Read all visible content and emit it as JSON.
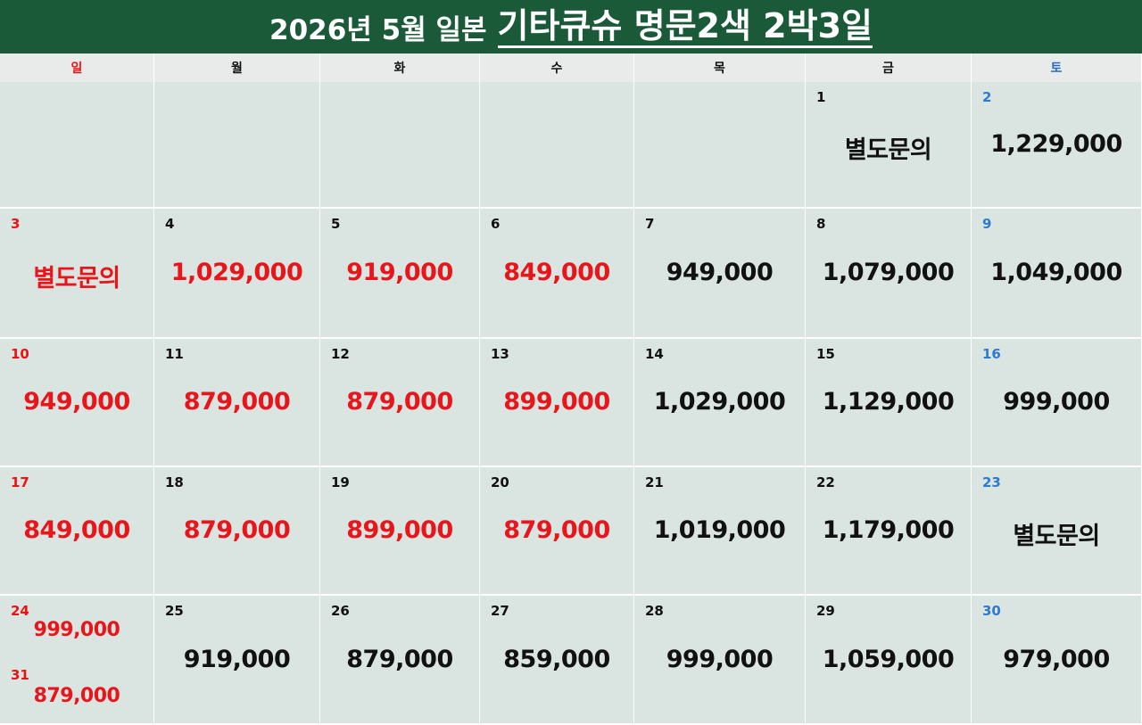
{
  "title": {
    "prefix": "2026년 5월 일본",
    "main": "기타큐슈 명문2색 2박3일"
  },
  "weekdays": [
    "일",
    "월",
    "화",
    "수",
    "목",
    "금",
    "토"
  ],
  "colors": {
    "header_bg": "#1b5a38",
    "cell_bg": "#dae4e0",
    "sunday": "#e11",
    "saturday": "#2b7bd2",
    "highlight_price": "#e8151b"
  },
  "weeks": [
    [
      null,
      null,
      null,
      null,
      null,
      {
        "day": "1",
        "price": "별도문의",
        "red": false
      },
      {
        "day": "2",
        "price": "1,229,000",
        "red": false
      }
    ],
    [
      {
        "day": "3",
        "price": "별도문의",
        "red": true
      },
      {
        "day": "4",
        "price": "1,029,000",
        "red": true
      },
      {
        "day": "5",
        "price": "919,000",
        "red": true
      },
      {
        "day": "6",
        "price": "849,000",
        "red": true
      },
      {
        "day": "7",
        "price": "949,000",
        "red": false
      },
      {
        "day": "8",
        "price": "1,079,000",
        "red": false
      },
      {
        "day": "9",
        "price": "1,049,000",
        "red": false
      }
    ],
    [
      {
        "day": "10",
        "price": "949,000",
        "red": true
      },
      {
        "day": "11",
        "price": "879,000",
        "red": true
      },
      {
        "day": "12",
        "price": "879,000",
        "red": true
      },
      {
        "day": "13",
        "price": "899,000",
        "red": true
      },
      {
        "day": "14",
        "price": "1,029,000",
        "red": false
      },
      {
        "day": "15",
        "price": "1,129,000",
        "red": false
      },
      {
        "day": "16",
        "price": "999,000",
        "red": false
      }
    ],
    [
      {
        "day": "17",
        "price": "849,000",
        "red": true
      },
      {
        "day": "18",
        "price": "879,000",
        "red": true
      },
      {
        "day": "19",
        "price": "899,000",
        "red": true
      },
      {
        "day": "20",
        "price": "879,000",
        "red": true
      },
      {
        "day": "21",
        "price": "1,019,000",
        "red": false
      },
      {
        "day": "22",
        "price": "1,179,000",
        "red": false
      },
      {
        "day": "23",
        "price": "별도문의",
        "red": false
      }
    ],
    [
      {
        "day": "24",
        "price": "999,000",
        "red": true,
        "day2": "31",
        "price2": "879,000"
      },
      {
        "day": "25",
        "price": "919,000",
        "red": false
      },
      {
        "day": "26",
        "price": "879,000",
        "red": false
      },
      {
        "day": "27",
        "price": "859,000",
        "red": false
      },
      {
        "day": "28",
        "price": "999,000",
        "red": false
      },
      {
        "day": "29",
        "price": "1,059,000",
        "red": false
      },
      {
        "day": "30",
        "price": "979,000",
        "red": false
      }
    ]
  ]
}
